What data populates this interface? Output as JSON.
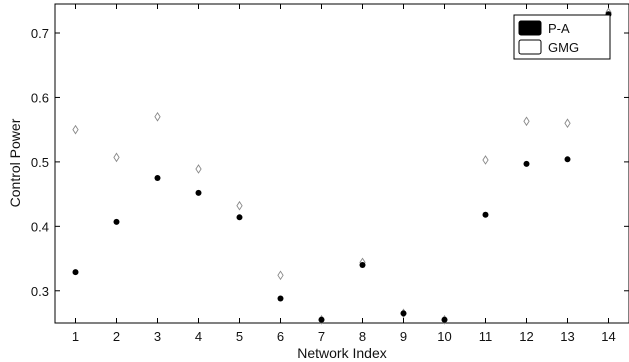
{
  "chart_data": {
    "type": "scatter",
    "xlabel": "Network Index",
    "ylabel": "Control Power",
    "x": [
      1,
      2,
      3,
      4,
      5,
      6,
      7,
      8,
      9,
      10,
      11,
      12,
      13,
      14
    ],
    "xlim": [
      0.5,
      14.5
    ],
    "ylim": [
      0.25,
      0.745
    ],
    "xticks": [
      1,
      2,
      3,
      4,
      5,
      6,
      7,
      8,
      9,
      10,
      11,
      12,
      13,
      14
    ],
    "yticks": [
      0.3,
      0.4,
      0.5,
      0.6,
      0.7
    ],
    "ytick_labels": [
      "0.3",
      "0.4",
      "0.5",
      "0.6",
      "0.7"
    ],
    "grid": false,
    "legend_position": "top-right",
    "series": [
      {
        "name": "P-A",
        "marker": "filled-circle",
        "color": "#000000",
        "values": [
          0.329,
          0.407,
          0.475,
          0.452,
          0.414,
          0.288,
          0.255,
          0.34,
          0.265,
          0.255,
          0.418,
          0.497,
          0.504,
          0.729
        ]
      },
      {
        "name": "GMG",
        "marker": "open-diamond",
        "color": "#888888",
        "values": [
          0.55,
          0.507,
          0.57,
          0.489,
          0.432,
          0.324,
          0.255,
          0.344,
          0.265,
          0.255,
          0.503,
          0.563,
          0.56,
          0.732
        ]
      }
    ]
  }
}
